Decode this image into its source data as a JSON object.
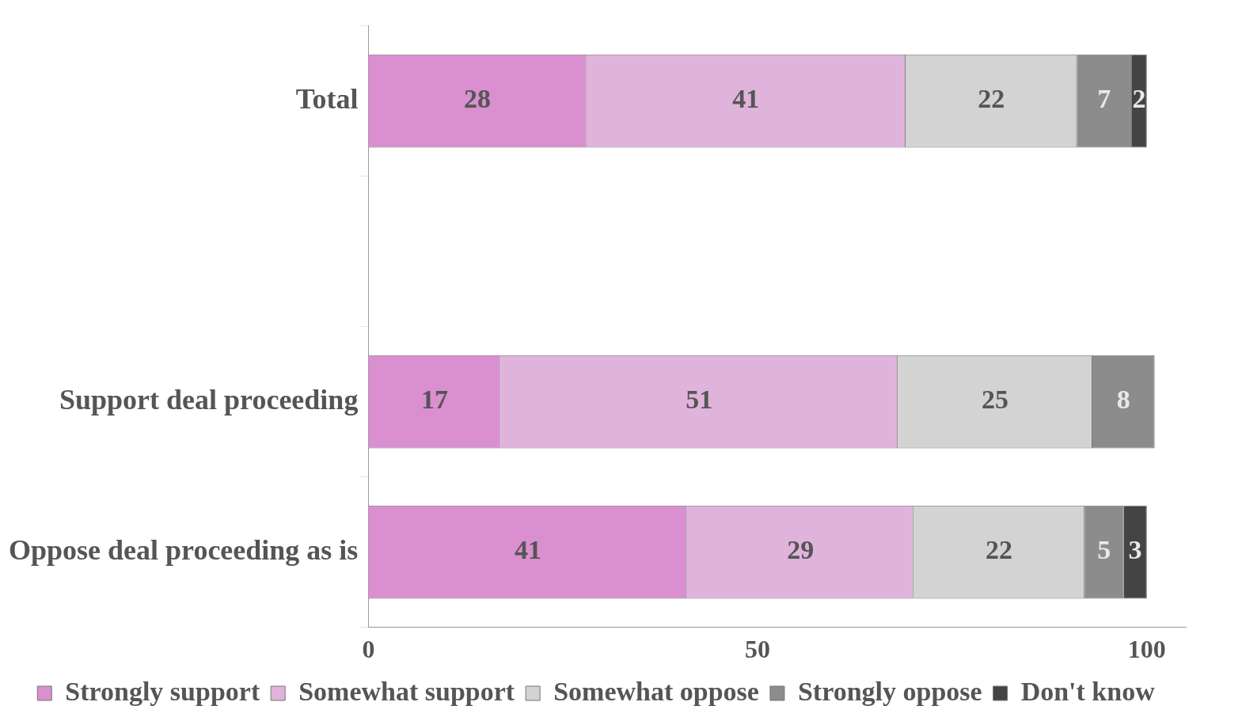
{
  "chart_data": {
    "type": "bar",
    "orientation": "horizontal",
    "stacked": true,
    "categories": [
      "Total",
      null,
      "Support deal proceeding",
      "Oppose deal proceeding as is"
    ],
    "series": [
      {
        "name": "Strongly support",
        "color": "#d98fd0",
        "values": [
          28,
          null,
          17,
          41
        ]
      },
      {
        "name": "Somewhat support",
        "color": "#e0b3dc",
        "values": [
          41,
          null,
          51,
          29
        ]
      },
      {
        "name": "Somewhat oppose",
        "color": "#d3d3d3",
        "values": [
          22,
          null,
          25,
          22
        ]
      },
      {
        "name": "Strongly oppose",
        "color": "#8c8c8c",
        "values": [
          7,
          null,
          8,
          5
        ]
      },
      {
        "name": "Don't know",
        "color": "#444444",
        "values": [
          2,
          null,
          null,
          3
        ]
      }
    ],
    "xlim": [
      0,
      105
    ],
    "xticks": [
      0,
      50,
      100
    ],
    "data_labels": true,
    "grid": false,
    "legend": "bottom"
  }
}
